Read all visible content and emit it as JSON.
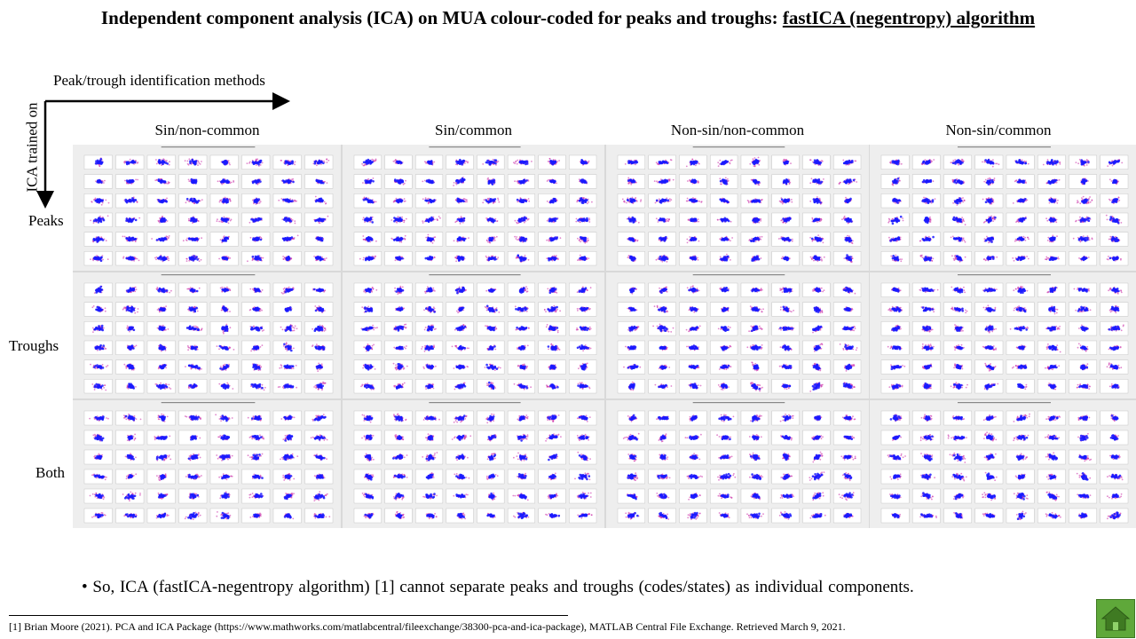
{
  "title": {
    "prefix": "Independent component analysis (ICA) on MUA colour-coded for peaks and troughs: ",
    "emphasis": "fastICA (negentropy) algorithm"
  },
  "axes": {
    "x_label": "Peak/trough identification  methods",
    "y_label": "ICA trained on"
  },
  "columns": [
    "Sin/non-common",
    "Sin/common",
    "Non-sin/non-common",
    "Non-sin/common"
  ],
  "rows": [
    "Peaks",
    "Troughs",
    "Both"
  ],
  "conclusion": "• So, ICA (fastICA-negentropy  algorithm) [1] cannot separate peaks and troughs (codes/states) as individual components.",
  "footnote": "[1] Brian Moore (2021).  PCA and ICA Package (https://www.mathworks.com/matlabcentral/fileexchange/38300-pca-and-ica-package),  MATLAB Central File Exchange. Retrieved March 9, 2021.",
  "colors": {
    "peak_points": "#1a1aff",
    "trough_points": "#cc33aa",
    "panel_bg": "#eeeeee",
    "home_button": "#5fa83a"
  },
  "icons": {
    "home": "home-icon"
  }
}
